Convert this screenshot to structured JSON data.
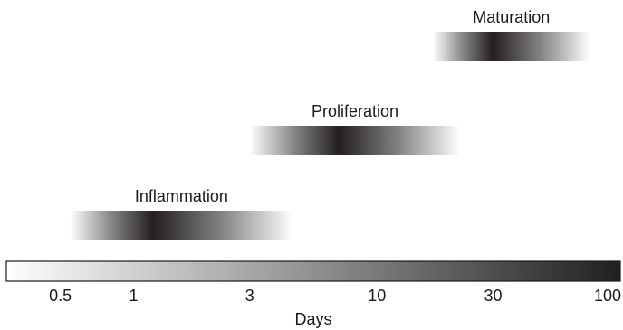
{
  "chart_data": {
    "type": "range-bar",
    "xlabel": "Days",
    "xscale": "log",
    "xlim": [
      0.3,
      100
    ],
    "xticks": [
      {
        "value": 0.5,
        "label": "0.5"
      },
      {
        "value": 1,
        "label": "1"
      },
      {
        "value": 3,
        "label": "3"
      },
      {
        "value": 10,
        "label": "10"
      },
      {
        "value": 30,
        "label": "30"
      },
      {
        "value": 100,
        "label": "100"
      }
    ],
    "phases": [
      {
        "name": "Maturation",
        "start": 17,
        "end": 75,
        "peak": 30
      },
      {
        "name": "Proliferation",
        "start": 3,
        "end": 22,
        "peak": 7
      },
      {
        "name": "Inflammation",
        "start": 0.55,
        "end": 4.5,
        "peak": 1.2
      }
    ],
    "colorbar": {
      "from": "#ffffff",
      "to": "#231f20"
    },
    "band_color": "#231f20"
  }
}
